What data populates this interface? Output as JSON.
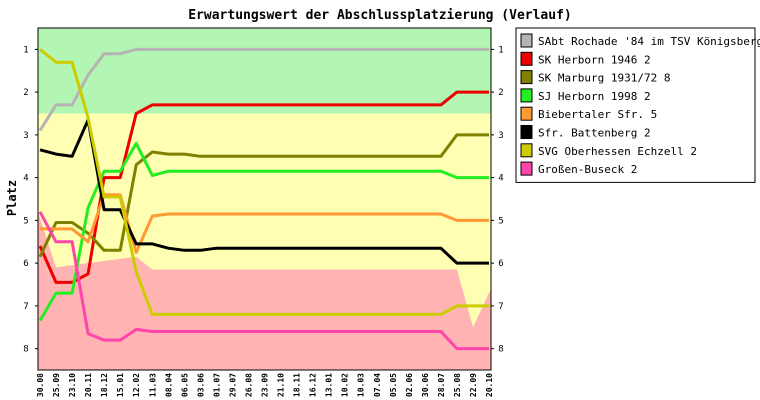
{
  "chart_data": {
    "type": "line",
    "title": "Erwartungswert der Abschlussplatzierung (Verlauf)",
    "ylabel": "Platz",
    "xlabel": "",
    "ylim": [
      0.5,
      8.5
    ],
    "yticks": [
      1,
      2,
      3,
      4,
      5,
      6,
      7,
      8
    ],
    "categories": [
      "30.08",
      "25.09",
      "23.10",
      "20.11",
      "18.12",
      "15.01",
      "12.02",
      "11.03",
      "08.04",
      "06.05",
      "03.06",
      "01.07",
      "29.07",
      "26.08",
      "23.09",
      "21.10",
      "18.11",
      "16.12",
      "13.01",
      "10.02",
      "10.03",
      "07.04",
      "05.05",
      "02.06",
      "30.06",
      "28.07",
      "25.08",
      "22.09",
      "20.10"
    ],
    "grid": false,
    "legend_position": "right",
    "zones": [
      {
        "name": "promotion",
        "color": "#b3f5b3"
      },
      {
        "name": "middle",
        "color": "#ffffb3"
      },
      {
        "name": "relegation",
        "color": "#ffb3b3"
      }
    ],
    "series": [
      {
        "name": "SAbt Rochade '84 im TSV Königsberg 1",
        "color": "#b4b4b4",
        "values": [
          2.9,
          2.3,
          2.3,
          1.6,
          1.1,
          1.1,
          1.0,
          1.0,
          1.0,
          1.0,
          1.0,
          1.0,
          1.0,
          1.0,
          1.0,
          1.0,
          1.0,
          1.0,
          1.0,
          1.0,
          1.0,
          1.0,
          1.0,
          1.0,
          1.0,
          1.0,
          1.0,
          1.0,
          1.0
        ]
      },
      {
        "name": "SK Herborn 1946 2",
        "color": "#ee0000",
        "values": [
          5.6,
          6.45,
          6.45,
          6.25,
          4.0,
          4.0,
          2.5,
          2.3,
          2.3,
          2.3,
          2.3,
          2.3,
          2.3,
          2.3,
          2.3,
          2.3,
          2.3,
          2.3,
          2.3,
          2.3,
          2.3,
          2.3,
          2.3,
          2.3,
          2.3,
          2.3,
          2.0,
          2.0,
          2.0
        ]
      },
      {
        "name": "SK Marburg 1931/72 8",
        "color": "#808000",
        "values": [
          5.85,
          5.05,
          5.05,
          5.3,
          5.7,
          5.7,
          3.7,
          3.4,
          3.45,
          3.45,
          3.5,
          3.5,
          3.5,
          3.5,
          3.5,
          3.5,
          3.5,
          3.5,
          3.5,
          3.5,
          3.5,
          3.5,
          3.5,
          3.5,
          3.5,
          3.5,
          3.0,
          3.0,
          3.0
        ]
      },
      {
        "name": "SJ Herborn 1998 2",
        "color": "#22ee22",
        "values": [
          7.35,
          6.7,
          6.7,
          4.7,
          3.85,
          3.85,
          3.2,
          3.95,
          3.85,
          3.85,
          3.85,
          3.85,
          3.85,
          3.85,
          3.85,
          3.85,
          3.85,
          3.85,
          3.85,
          3.85,
          3.85,
          3.85,
          3.85,
          3.85,
          3.85,
          3.85,
          4.0,
          4.0,
          4.0
        ]
      },
      {
        "name": "Biebertaler Sfr. 5",
        "color": "#ff9933",
        "values": [
          5.2,
          5.2,
          5.2,
          5.5,
          4.4,
          4.4,
          5.75,
          4.9,
          4.85,
          4.85,
          4.85,
          4.85,
          4.85,
          4.85,
          4.85,
          4.85,
          4.85,
          4.85,
          4.85,
          4.85,
          4.85,
          4.85,
          4.85,
          4.85,
          4.85,
          4.85,
          5.0,
          5.0,
          5.0
        ]
      },
      {
        "name": "Sfr. Battenberg 2",
        "color": "#000000",
        "values": [
          3.35,
          3.45,
          3.5,
          2.65,
          4.75,
          4.75,
          5.55,
          5.55,
          5.65,
          5.7,
          5.7,
          5.65,
          5.65,
          5.65,
          5.65,
          5.65,
          5.65,
          5.65,
          5.65,
          5.65,
          5.65,
          5.65,
          5.65,
          5.65,
          5.65,
          5.65,
          6.0,
          6.0,
          6.0
        ]
      },
      {
        "name": "SVG Oberhessen Echzell 2",
        "color": "#cccc00",
        "values": [
          1.0,
          1.3,
          1.3,
          2.6,
          4.45,
          4.45,
          6.2,
          7.2,
          7.2,
          7.2,
          7.2,
          7.2,
          7.2,
          7.2,
          7.2,
          7.2,
          7.2,
          7.2,
          7.2,
          7.2,
          7.2,
          7.2,
          7.2,
          7.2,
          7.2,
          7.2,
          7.0,
          7.0,
          7.0
        ]
      },
      {
        "name": "Großen-Buseck 2",
        "color": "#ff44aa",
        "values": [
          4.8,
          5.5,
          5.5,
          7.65,
          7.8,
          7.8,
          7.55,
          7.6,
          7.6,
          7.6,
          7.6,
          7.6,
          7.6,
          7.6,
          7.6,
          7.6,
          7.6,
          7.6,
          7.6,
          7.6,
          7.6,
          7.6,
          7.6,
          7.6,
          7.6,
          7.6,
          8.0,
          8.0,
          8.0
        ]
      }
    ]
  }
}
